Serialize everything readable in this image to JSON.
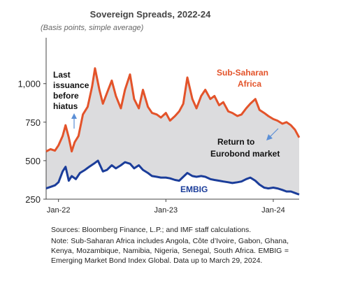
{
  "chart_data": {
    "type": "area",
    "title": "Sovereign Spreads, 2022-24",
    "subtitle": "(Basis points, simple average)",
    "xlabel": "",
    "ylabel": "",
    "x_ticks": [
      "Jan-22",
      "Jan-23",
      "Jan-24"
    ],
    "y_ticks": [
      250,
      500,
      750,
      1000
    ],
    "y_tick_labels": [
      "250",
      "500",
      "750",
      "1,000"
    ],
    "ylim": [
      250,
      1280
    ],
    "xlim": [
      "2021-11-20",
      "2024-03-29"
    ],
    "grid": false,
    "fill_between_series": true,
    "series": [
      {
        "name": "Sub-Saharan Africa",
        "color": "#e3532a",
        "points": [
          [
            "2021-11-20",
            560
          ],
          [
            "2021-12-05",
            575
          ],
          [
            "2021-12-20",
            565
          ],
          [
            "2022-01-01",
            600
          ],
          [
            "2022-01-15",
            660
          ],
          [
            "2022-01-25",
            730
          ],
          [
            "2022-02-05",
            650
          ],
          [
            "2022-02-15",
            560
          ],
          [
            "2022-02-25",
            620
          ],
          [
            "2022-03-10",
            660
          ],
          [
            "2022-03-25",
            800
          ],
          [
            "2022-04-10",
            850
          ],
          [
            "2022-04-25",
            980
          ],
          [
            "2022-05-05",
            1100
          ],
          [
            "2022-05-20",
            960
          ],
          [
            "2022-06-01",
            870
          ],
          [
            "2022-06-15",
            940
          ],
          [
            "2022-07-01",
            1020
          ],
          [
            "2022-07-15",
            920
          ],
          [
            "2022-08-01",
            840
          ],
          [
            "2022-08-15",
            960
          ],
          [
            "2022-09-01",
            1060
          ],
          [
            "2022-09-15",
            900
          ],
          [
            "2022-10-01",
            840
          ],
          [
            "2022-10-15",
            960
          ],
          [
            "2022-11-01",
            850
          ],
          [
            "2022-11-15",
            810
          ],
          [
            "2022-12-01",
            800
          ],
          [
            "2022-12-15",
            780
          ],
          [
            "2023-01-01",
            810
          ],
          [
            "2023-01-15",
            760
          ],
          [
            "2023-02-01",
            790
          ],
          [
            "2023-02-15",
            820
          ],
          [
            "2023-03-01",
            870
          ],
          [
            "2023-03-15",
            1040
          ],
          [
            "2023-04-01",
            900
          ],
          [
            "2023-04-15",
            840
          ],
          [
            "2023-05-01",
            920
          ],
          [
            "2023-05-15",
            960
          ],
          [
            "2023-06-01",
            900
          ],
          [
            "2023-06-15",
            920
          ],
          [
            "2023-07-01",
            860
          ],
          [
            "2023-07-15",
            880
          ],
          [
            "2023-08-01",
            820
          ],
          [
            "2023-08-15",
            810
          ],
          [
            "2023-09-01",
            790
          ],
          [
            "2023-09-15",
            800
          ],
          [
            "2023-10-01",
            840
          ],
          [
            "2023-10-15",
            870
          ],
          [
            "2023-11-01",
            900
          ],
          [
            "2023-11-15",
            830
          ],
          [
            "2023-12-01",
            810
          ],
          [
            "2023-12-15",
            790
          ],
          [
            "2024-01-01",
            770
          ],
          [
            "2024-01-15",
            760
          ],
          [
            "2024-02-01",
            740
          ],
          [
            "2024-02-15",
            750
          ],
          [
            "2024-03-01",
            730
          ],
          [
            "2024-03-15",
            700
          ],
          [
            "2024-03-29",
            650
          ]
        ]
      },
      {
        "name": "EMBIG",
        "color": "#1b3d9a",
        "points": [
          [
            "2021-11-20",
            320
          ],
          [
            "2021-12-05",
            330
          ],
          [
            "2021-12-20",
            340
          ],
          [
            "2022-01-01",
            360
          ],
          [
            "2022-01-15",
            430
          ],
          [
            "2022-01-25",
            460
          ],
          [
            "2022-02-05",
            370
          ],
          [
            "2022-02-15",
            400
          ],
          [
            "2022-03-01",
            380
          ],
          [
            "2022-03-15",
            420
          ],
          [
            "2022-04-01",
            440
          ],
          [
            "2022-04-15",
            460
          ],
          [
            "2022-05-01",
            480
          ],
          [
            "2022-05-15",
            500
          ],
          [
            "2022-06-01",
            430
          ],
          [
            "2022-06-15",
            440
          ],
          [
            "2022-07-01",
            470
          ],
          [
            "2022-07-15",
            450
          ],
          [
            "2022-08-01",
            470
          ],
          [
            "2022-08-15",
            490
          ],
          [
            "2022-09-01",
            480
          ],
          [
            "2022-09-15",
            450
          ],
          [
            "2022-10-01",
            470
          ],
          [
            "2022-10-15",
            440
          ],
          [
            "2022-11-01",
            420
          ],
          [
            "2022-11-15",
            400
          ],
          [
            "2022-12-01",
            395
          ],
          [
            "2022-12-15",
            390
          ],
          [
            "2023-01-01",
            390
          ],
          [
            "2023-01-15",
            385
          ],
          [
            "2023-02-01",
            375
          ],
          [
            "2023-02-15",
            370
          ],
          [
            "2023-03-01",
            395
          ],
          [
            "2023-03-15",
            420
          ],
          [
            "2023-04-01",
            400
          ],
          [
            "2023-04-15",
            395
          ],
          [
            "2023-05-01",
            400
          ],
          [
            "2023-05-15",
            395
          ],
          [
            "2023-06-01",
            380
          ],
          [
            "2023-06-15",
            375
          ],
          [
            "2023-07-01",
            370
          ],
          [
            "2023-07-15",
            365
          ],
          [
            "2023-08-01",
            360
          ],
          [
            "2023-08-15",
            355
          ],
          [
            "2023-09-01",
            360
          ],
          [
            "2023-09-15",
            365
          ],
          [
            "2023-10-01",
            380
          ],
          [
            "2023-10-15",
            390
          ],
          [
            "2023-11-01",
            370
          ],
          [
            "2023-11-15",
            345
          ],
          [
            "2023-12-01",
            325
          ],
          [
            "2023-12-15",
            320
          ],
          [
            "2024-01-01",
            325
          ],
          [
            "2024-01-15",
            320
          ],
          [
            "2024-02-01",
            310
          ],
          [
            "2024-02-15",
            300
          ],
          [
            "2024-03-01",
            300
          ],
          [
            "2024-03-15",
            290
          ],
          [
            "2024-03-29",
            280
          ]
        ]
      }
    ],
    "annotations": [
      {
        "text": "Last issuance before hiatus",
        "lines": [
          "Last",
          "issuance",
          "before",
          "hiatus"
        ],
        "arrow": "up"
      },
      {
        "text": "Return to Eurobond market",
        "lines": [
          "Return to",
          "Eurobond market"
        ],
        "arrow": "down-left"
      }
    ],
    "series_labels": [
      {
        "text": "Sub-Saharan Africa",
        "lines": [
          "Sub-Saharan",
          "Africa"
        ]
      },
      {
        "text": "EMBIG",
        "lines": [
          "EMBIG"
        ]
      }
    ]
  },
  "notes": {
    "sources": "Sources: Bloomberg Finance, L.P.; and IMF staff calculations.",
    "note": "Note: Sub-Saharan Africa includes Angola, Côte d’Ivoire, Gabon, Ghana, Kenya, Mozambique, Namibia, Nigeria, Senegal, South Africa. EMBIG = Emerging Market Bond Index Global. Data up to March 29, 2024."
  },
  "colors": {
    "ssa": "#e3532a",
    "embig": "#1b3d9a",
    "fill": "#dcdcde",
    "arrow": "#5b8fd6",
    "axis": "#444444"
  }
}
